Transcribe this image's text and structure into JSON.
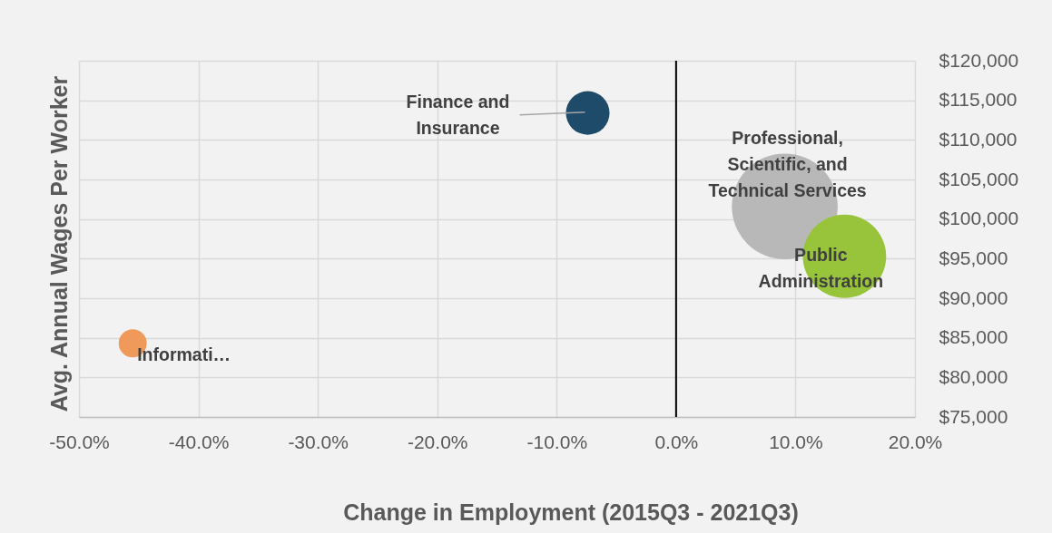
{
  "chart_data": {
    "type": "bubble",
    "xlabel": "Change in Employment (2015Q3 - 2021Q3)",
    "ylabel": "Avg. Annual Wages Per Worker",
    "xlim": [
      -50,
      20
    ],
    "xticks": [
      {
        "value": -50,
        "label": "-50.0%"
      },
      {
        "value": -40,
        "label": "-40.0%"
      },
      {
        "value": -30,
        "label": "-30.0%"
      },
      {
        "value": -20,
        "label": "-20.0%"
      },
      {
        "value": -10,
        "label": "-10.0%"
      },
      {
        "value": 0,
        "label": "0.0%"
      },
      {
        "value": 10,
        "label": "10.0%"
      },
      {
        "value": 20,
        "label": "20.0%"
      }
    ],
    "ylim": [
      75000,
      120000
    ],
    "yticks": [
      {
        "value": 75000,
        "label": "$75,000"
      },
      {
        "value": 80000,
        "label": "$80,000"
      },
      {
        "value": 85000,
        "label": "$85,000"
      },
      {
        "value": 90000,
        "label": "$90,000"
      },
      {
        "value": 95000,
        "label": "$95,000"
      },
      {
        "value": 100000,
        "label": "$100,000"
      },
      {
        "value": 105000,
        "label": "$105,000"
      },
      {
        "value": 110000,
        "label": "$110,000"
      },
      {
        "value": 115000,
        "label": "$115,000"
      },
      {
        "value": 120000,
        "label": "$120,000"
      }
    ],
    "grid": true,
    "ref_lines": [
      {
        "axis": "x",
        "value": 0,
        "color": "#000000"
      }
    ],
    "series": [
      {
        "name": "Informati…",
        "color": "#ef9a5a",
        "x": [
          -45.5
        ],
        "values": [
          84300
        ],
        "sizes": [
          0.07
        ]
      },
      {
        "name": "Finance and Insurance",
        "color": "#1d4b69",
        "x": [
          -7.4
        ],
        "values": [
          113400
        ],
        "sizes": [
          0.17
        ]
      },
      {
        "name": "Professional, Scientific, and Technical Services",
        "color": "#b8b8b8",
        "x": [
          9.1
        ],
        "values": [
          101600
        ],
        "sizes": [
          1
        ]
      },
      {
        "name": "Public Administration",
        "color": "#98c43c",
        "x": [
          14.1
        ],
        "values": [
          95300
        ],
        "sizes": [
          0.62
        ]
      }
    ]
  }
}
